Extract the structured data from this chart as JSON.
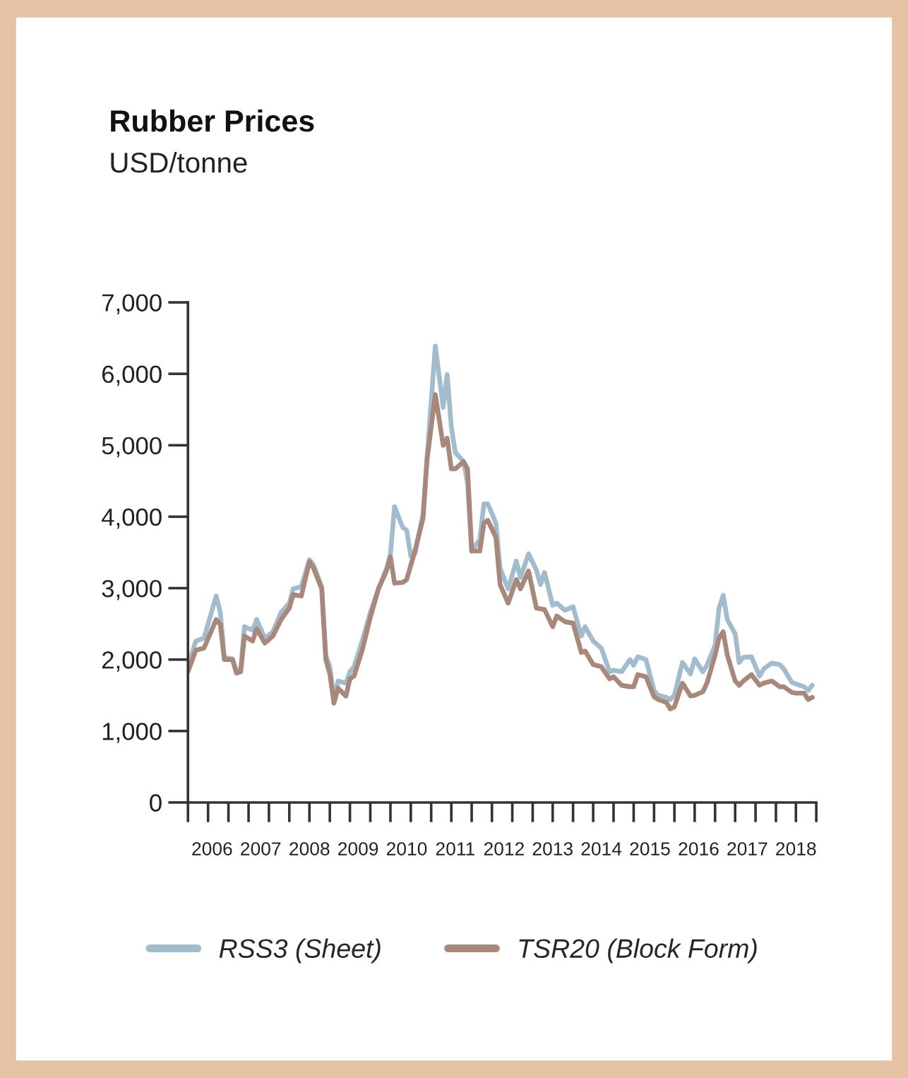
{
  "chart_data": {
    "type": "line",
    "title": "Rubber Prices",
    "subtitle": "USD/tonne",
    "x": [
      "2006-01",
      "2006-03",
      "2006-05",
      "2006-08",
      "2006-09",
      "2006-10",
      "2006-12",
      "2007-01",
      "2007-02",
      "2007-03",
      "2007-05",
      "2007-06",
      "2007-08",
      "2007-10",
      "2007-12",
      "2008-02",
      "2008-03",
      "2008-05",
      "2008-07",
      "2008-08",
      "2008-10",
      "2008-11",
      "2008-12",
      "2009-01",
      "2009-02",
      "2009-04",
      "2009-05",
      "2009-06",
      "2009-08",
      "2009-10",
      "2009-12",
      "2010-02",
      "2010-03",
      "2010-04",
      "2010-06",
      "2010-07",
      "2010-08",
      "2010-09",
      "2010-11",
      "2010-12",
      "2011-02",
      "2011-04",
      "2011-05",
      "2011-06",
      "2011-07",
      "2011-09",
      "2011-10",
      "2011-11",
      "2012-01",
      "2012-02",
      "2012-03",
      "2012-05",
      "2012-06",
      "2012-08",
      "2012-10",
      "2012-11",
      "2013-01",
      "2013-03",
      "2013-04",
      "2013-05",
      "2013-07",
      "2013-08",
      "2013-10",
      "2013-12",
      "2014-02",
      "2014-03",
      "2014-05",
      "2014-07",
      "2014-09",
      "2014-10",
      "2014-12",
      "2015-02",
      "2015-03",
      "2015-04",
      "2015-06",
      "2015-08",
      "2015-09",
      "2015-11",
      "2015-12",
      "2016-01",
      "2016-03",
      "2016-05",
      "2016-06",
      "2016-08",
      "2016-09",
      "2016-11",
      "2016-12",
      "2017-01",
      "2017-02",
      "2017-04",
      "2017-05",
      "2017-06",
      "2017-08",
      "2017-10",
      "2017-11",
      "2018-01",
      "2018-03",
      "2018-04",
      "2018-06",
      "2018-07",
      "2018-09",
      "2018-10",
      "2018-11"
    ],
    "series": [
      {
        "name": "RSS3 (Sheet)",
        "color": "#a2bccd",
        "values": [
          1900,
          2260,
          2300,
          2890,
          2660,
          2030,
          2010,
          1830,
          1870,
          2460,
          2410,
          2560,
          2300,
          2390,
          2660,
          2790,
          2990,
          3020,
          3400,
          3320,
          3020,
          2060,
          1900,
          1440,
          1700,
          1670,
          1830,
          1900,
          2260,
          2660,
          2990,
          3280,
          3480,
          4140,
          3850,
          3810,
          3450,
          3480,
          4040,
          4830,
          6390,
          5530,
          5990,
          5260,
          4900,
          4770,
          4470,
          3520,
          3680,
          4180,
          4180,
          3910,
          3280,
          2990,
          3380,
          3150,
          3480,
          3250,
          3050,
          3220,
          2760,
          2790,
          2690,
          2740,
          2330,
          2460,
          2260,
          2160,
          1830,
          1850,
          1830,
          2000,
          1920,
          2040,
          2000,
          1570,
          1500,
          1470,
          1440,
          1500,
          1960,
          1800,
          2010,
          1830,
          1920,
          2200,
          2720,
          2900,
          2560,
          2360,
          1960,
          2030,
          2040,
          1770,
          1870,
          1950,
          1930,
          1870,
          1680,
          1660,
          1620,
          1570,
          1640
        ]
      },
      {
        "name": "TSR20 (Block Form)",
        "color": "#a8887a",
        "values": [
          1830,
          2130,
          2160,
          2560,
          2490,
          2000,
          2000,
          1810,
          1830,
          2330,
          2260,
          2430,
          2230,
          2330,
          2560,
          2720,
          2910,
          2890,
          3370,
          3280,
          2990,
          2000,
          1800,
          1390,
          1600,
          1490,
          1730,
          1770,
          2130,
          2590,
          2990,
          3250,
          3440,
          3070,
          3080,
          3120,
          3320,
          3520,
          3980,
          4800,
          5710,
          5000,
          5100,
          4670,
          4670,
          4770,
          4670,
          3520,
          3520,
          3910,
          3950,
          3710,
          3050,
          2790,
          3120,
          2990,
          3240,
          2720,
          2710,
          2700,
          2460,
          2610,
          2530,
          2510,
          2100,
          2120,
          1930,
          1900,
          1730,
          1760,
          1640,
          1620,
          1620,
          1790,
          1760,
          1480,
          1440,
          1400,
          1310,
          1340,
          1670,
          1490,
          1500,
          1550,
          1670,
          2060,
          2300,
          2390,
          2060,
          1700,
          1640,
          1700,
          1790,
          1640,
          1670,
          1700,
          1620,
          1620,
          1540,
          1530,
          1530,
          1440,
          1470
        ]
      }
    ],
    "xlim": [
      "2006-01",
      "2018-12"
    ],
    "xticks": [
      {
        "value": "2006-01",
        "label": null
      },
      {
        "value": "2006-06",
        "label": null
      },
      {
        "value": "2006-07",
        "label": "2006"
      },
      {
        "value": "2006-11",
        "label": null
      },
      {
        "value": "2007-04",
        "label": null
      },
      {
        "value": "2007-07",
        "label": "2007"
      },
      {
        "value": "2007-09",
        "label": null
      },
      {
        "value": "2008-02",
        "label": null
      },
      {
        "value": "2008-07",
        "label": "2008"
      },
      {
        "value": "2008-07",
        "label": null
      },
      {
        "value": "2008-12",
        "label": null
      },
      {
        "value": "2009-05",
        "label": null
      },
      {
        "value": "2009-07",
        "label": "2009"
      },
      {
        "value": "2009-10",
        "label": null
      },
      {
        "value": "2010-03",
        "label": null
      },
      {
        "value": "2010-07",
        "label": "2010"
      },
      {
        "value": "2010-08",
        "label": null
      },
      {
        "value": "2011-01",
        "label": null
      },
      {
        "value": "2011-06",
        "label": null
      },
      {
        "value": "2011-07",
        "label": "2011"
      },
      {
        "value": "2011-11",
        "label": null
      },
      {
        "value": "2012-04",
        "label": null
      },
      {
        "value": "2012-07",
        "label": "2012"
      },
      {
        "value": "2012-09",
        "label": null
      },
      {
        "value": "2013-02",
        "label": null
      },
      {
        "value": "2013-07",
        "label": "2013"
      },
      {
        "value": "2013-07",
        "label": null
      },
      {
        "value": "2013-12",
        "label": null
      },
      {
        "value": "2014-05",
        "label": null
      },
      {
        "value": "2014-07",
        "label": "2014"
      },
      {
        "value": "2014-10",
        "label": null
      },
      {
        "value": "2015-03",
        "label": null
      },
      {
        "value": "2015-07",
        "label": "2015"
      },
      {
        "value": "2015-08",
        "label": null
      },
      {
        "value": "2016-01",
        "label": null
      },
      {
        "value": "2016-06",
        "label": null
      },
      {
        "value": "2016-07",
        "label": "2016"
      },
      {
        "value": "2016-11",
        "label": null
      },
      {
        "value": "2017-04",
        "label": null
      },
      {
        "value": "2017-07",
        "label": "2017"
      },
      {
        "value": "2017-09",
        "label": null
      },
      {
        "value": "2018-02",
        "label": null
      },
      {
        "value": "2018-07",
        "label": "2018"
      },
      {
        "value": "2018-07",
        "label": null
      },
      {
        "value": "2018-12",
        "label": null
      }
    ],
    "ylim": [
      0,
      7000
    ],
    "yticks": [
      0,
      {
        "value": 1000,
        "label": "1,000"
      },
      {
        "value": 2000,
        "label": "2,000"
      },
      {
        "value": 3000,
        "label": "3,000"
      },
      {
        "value": 4000,
        "label": "4,000"
      },
      {
        "value": 5000,
        "label": "5,000"
      },
      {
        "value": 6000,
        "label": "6,000"
      },
      {
        "value": 7000,
        "label": "7,000"
      }
    ],
    "grid": false,
    "legend": "bottom",
    "marker": "none",
    "line_style": "solid"
  }
}
